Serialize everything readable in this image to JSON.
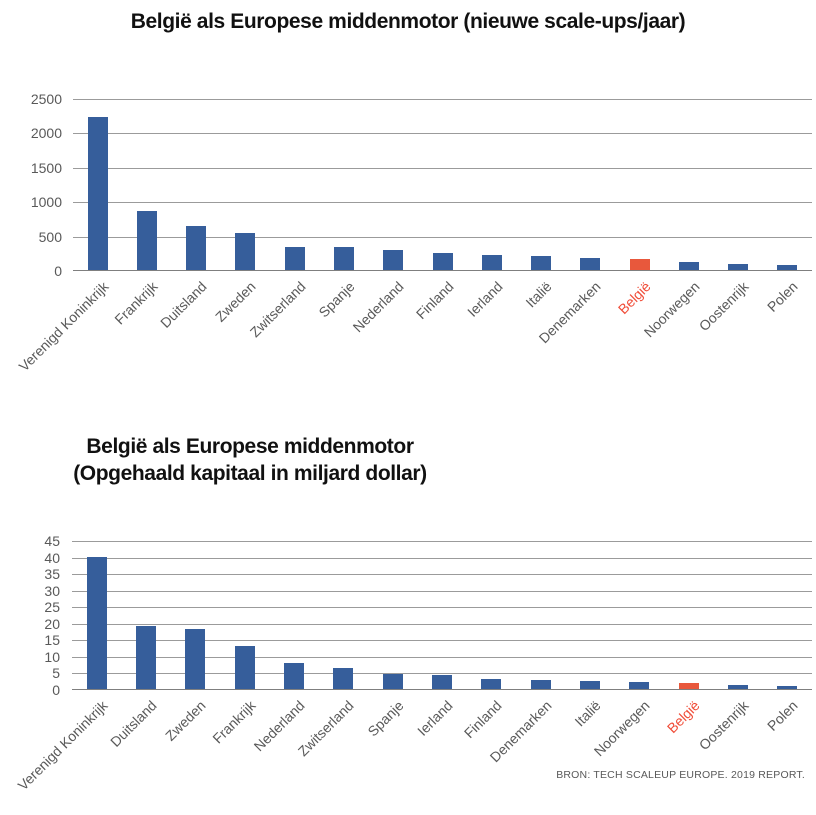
{
  "colors": {
    "bar_blue": "#365E9B",
    "bar_orange": "#E8583C",
    "highlight_label": "#F04C38",
    "grid": "#9B9B9B",
    "axis_line": "#7F7F7F",
    "axis_text": "#595959",
    "title_text": "#111111",
    "background": "#FFFFFF"
  },
  "source_note": "BRON: TECH SCALEUP EUROPE. 2019 REPORT.",
  "chart_data": [
    {
      "type": "bar",
      "title": "België als Europese middenmotor (nieuwe scale-ups/jaar)",
      "categories": [
        "Verenigd Koninkrijk",
        "Frankrijk",
        "Duitsland",
        "Zweden",
        "Zwitserland",
        "Spanje",
        "Nederland",
        "Finland",
        "Ierland",
        "Italië",
        "Denemarken",
        "België",
        "Noorwegen",
        "Oostenrijk",
        "Polen"
      ],
      "values": [
        2230,
        860,
        645,
        540,
        335,
        330,
        290,
        245,
        225,
        200,
        175,
        155,
        115,
        85,
        80
      ],
      "highlight_category": "België",
      "xlabel": "",
      "ylabel": "",
      "ylim": [
        0,
        2500
      ],
      "ytick_step": 500,
      "yticks": [
        0,
        500,
        1000,
        1500,
        2000,
        2500
      ],
      "grid": true,
      "legend": "none"
    },
    {
      "type": "bar",
      "title": "België als Europese middenmotor (Opgehaald kapitaal in miljard dollar)",
      "title_lines": [
        "België als Europese middenmotor",
        "(Opgehaald kapitaal in miljard dollar)"
      ],
      "categories": [
        "Verenigd Koninkrijk",
        "Duitsland",
        "Zweden",
        "Frankrijk",
        "Nederland",
        "Zwitserland",
        "Spanje",
        "Ierland",
        "Finland",
        "Denemarken",
        "Italië",
        "Noorwegen",
        "België",
        "Oostenrijk",
        "Polen"
      ],
      "values": [
        40,
        19,
        18,
        13,
        8,
        6.2,
        4.4,
        4.1,
        2.9,
        2.8,
        2.5,
        2,
        1.9,
        1.2,
        1
      ],
      "highlight_category": "België",
      "xlabel": "",
      "ylabel": "",
      "ylim": [
        0,
        45
      ],
      "ytick_step": 5,
      "yticks": [
        0,
        5,
        10,
        15,
        20,
        25,
        30,
        35,
        40,
        45
      ],
      "grid": true,
      "legend": "none"
    }
  ]
}
